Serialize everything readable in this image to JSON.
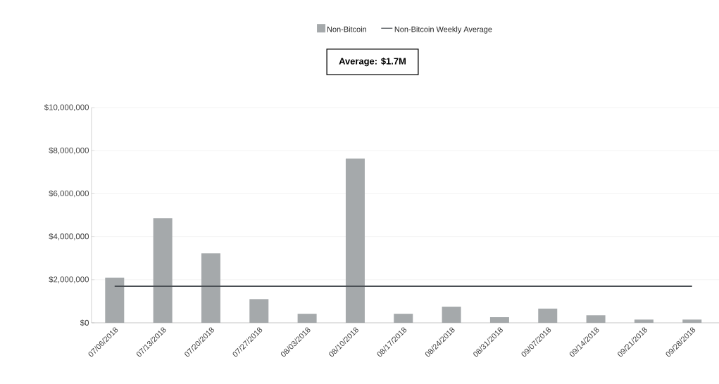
{
  "chart_data": {
    "type": "bar",
    "categories": [
      "07/06/2018",
      "07/13/2018",
      "07/20/2018",
      "07/27/2018",
      "08/03/2018",
      "08/10/2018",
      "08/17/2018",
      "08/24/2018",
      "08/31/2018",
      "09/07/2018",
      "09/14/2018",
      "09/21/2018",
      "09/28/2018"
    ],
    "series": [
      {
        "name": "Non-Bitcoin",
        "color": "#a5a9ab",
        "values": [
          2100000,
          4860000,
          3230000,
          1100000,
          420000,
          7630000,
          420000,
          750000,
          260000,
          660000,
          350000,
          150000,
          150000
        ]
      },
      {
        "name": "Non-Bitcoin Weekly Average",
        "type": "line",
        "color": "#4a4f54",
        "values": [
          1700000,
          1700000,
          1700000,
          1700000,
          1700000,
          1700000,
          1700000,
          1700000,
          1700000,
          1700000,
          1700000,
          1700000,
          1700000
        ]
      }
    ],
    "ylim": [
      0,
      10000000
    ],
    "yticks": [
      {
        "value": 0,
        "label": "$0"
      },
      {
        "value": 2000000,
        "label": "$2,000,000"
      },
      {
        "value": 4000000,
        "label": "$4,000,000"
      },
      {
        "value": 6000000,
        "label": "$6,000,000"
      },
      {
        "value": 8000000,
        "label": "$8,000,000"
      },
      {
        "value": 10000000,
        "label": "$10,000,000"
      }
    ],
    "annotations": [
      "Average: $1.7M"
    ],
    "grid": "y",
    "legend": "top",
    "marker": "none",
    "line_style": "solid"
  }
}
